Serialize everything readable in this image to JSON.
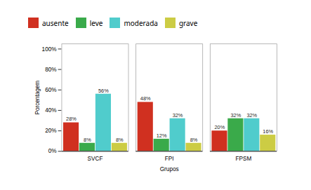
{
  "chart_data": {
    "type": "bar",
    "categories": [
      "SVCF",
      "FPI",
      "FPSM"
    ],
    "series": [
      {
        "name": "ausente",
        "color": "#d03020",
        "values": [
          28,
          48,
          20
        ],
        "value_labels": [
          "28%",
          "48%",
          "20%"
        ]
      },
      {
        "name": "leve",
        "color": "#3aaa4a",
        "values": [
          8,
          12,
          32
        ],
        "value_labels": [
          "8%",
          "12%",
          "32%"
        ]
      },
      {
        "name": "moderada",
        "color": "#50cccc",
        "values": [
          56,
          32,
          32
        ],
        "value_labels": [
          "56%",
          "32%",
          "32%"
        ]
      },
      {
        "name": "grave",
        "color": "#cccc44",
        "values": [
          8,
          8,
          16
        ],
        "value_labels": [
          "8%",
          "8%",
          "16%"
        ]
      }
    ],
    "xlabel": "Grupos",
    "ylabel": "Porcentagem",
    "ylim": [
      0,
      105
    ],
    "yticks": [
      {
        "value": 0,
        "label": "0%"
      },
      {
        "value": 20,
        "label": "20%"
      },
      {
        "value": 40,
        "label": "40%"
      },
      {
        "value": 60,
        "label": "60%"
      },
      {
        "value": 80,
        "label": "80%"
      },
      {
        "value": 100,
        "label": "100%"
      }
    ],
    "grid": false,
    "legend": "upper left",
    "data_labels": true
  }
}
